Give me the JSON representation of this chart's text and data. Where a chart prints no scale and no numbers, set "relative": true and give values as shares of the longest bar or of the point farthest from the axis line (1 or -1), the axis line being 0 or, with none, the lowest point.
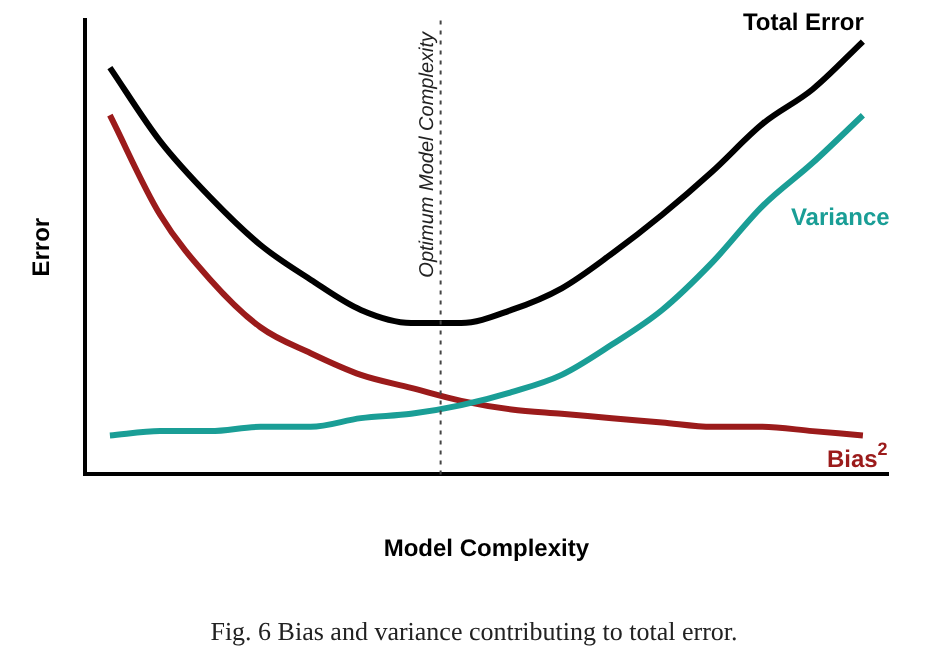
{
  "chart_data": {
    "type": "line",
    "relative": true,
    "xlabel": "Model Complexity",
    "ylabel": "Error",
    "legend": false,
    "grid": false,
    "marker": "none",
    "line_style": "solid",
    "categories": [
      null,
      null,
      null,
      null,
      null,
      null,
      null,
      null,
      null,
      null,
      null,
      null,
      null,
      null,
      null,
      null
    ],
    "series": [
      {
        "name": "Total Error",
        "color": "#000000",
        "values": [
          0.94,
          0.77,
          0.64,
          0.53,
          0.45,
          0.38,
          0.35,
          0.35,
          0.38,
          0.43,
          0.51,
          0.6,
          0.7,
          0.81,
          0.89,
          1
        ]
      },
      {
        "name": "Variance",
        "color": "#1a9e96",
        "values": [
          0.09,
          0.1,
          0.1,
          0.11,
          0.11,
          0.13,
          0.14,
          0.16,
          0.19,
          0.23,
          0.3,
          0.38,
          0.49,
          0.62,
          0.72,
          0.83
        ]
      },
      {
        "name": "Bias$^{2}$",
        "color": "#9b1b1b",
        "values": [
          0.83,
          0.6,
          0.45,
          0.34,
          0.28,
          0.23,
          0.2,
          0.17,
          0.15,
          0.14,
          0.13,
          0.12,
          0.11,
          0.11,
          0.1,
          0.09
        ]
      }
    ],
    "annotations": [
      "Optimum Model Complexity",
      "Fig. 6 Bias and variance contributing to total error."
    ]
  }
}
